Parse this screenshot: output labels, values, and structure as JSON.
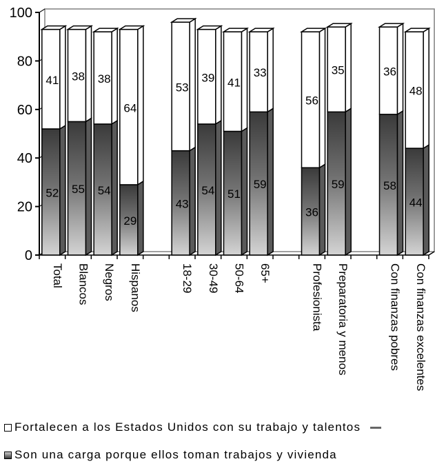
{
  "chart_data": {
    "type": "bar",
    "stacked": true,
    "categories": [
      "Total",
      "Blancos",
      "Negros",
      "Hispanos",
      "",
      "18-29",
      "30-49",
      "50-64",
      "65+",
      "",
      "Profesionista",
      "Preparatoria y menos",
      "",
      "Con finanzas pobres",
      "Con finanzas excelentes"
    ],
    "series": [
      {
        "name": "Son una carga porque ellos toman trabajos y vivienda",
        "values": [
          52,
          55,
          54,
          29,
          null,
          43,
          54,
          51,
          59,
          null,
          36,
          59,
          null,
          58,
          44
        ]
      },
      {
        "name": "Fortalecen a los Estados Unidos con su trabajo y talentos",
        "values": [
          41,
          38,
          38,
          64,
          null,
          53,
          39,
          41,
          33,
          null,
          56,
          35,
          null,
          36,
          48
        ]
      }
    ],
    "ylim": [
      0,
      100
    ],
    "yticks": [
      0,
      20,
      40,
      60,
      80,
      100
    ],
    "grid": false,
    "legend_position": "bottom",
    "colors": {
      "top_fill": "#ffffff",
      "bottom_light": "#d0d0d0",
      "bottom_dark": "#383838",
      "outline": "#000000",
      "plot_border": "#808080"
    }
  }
}
